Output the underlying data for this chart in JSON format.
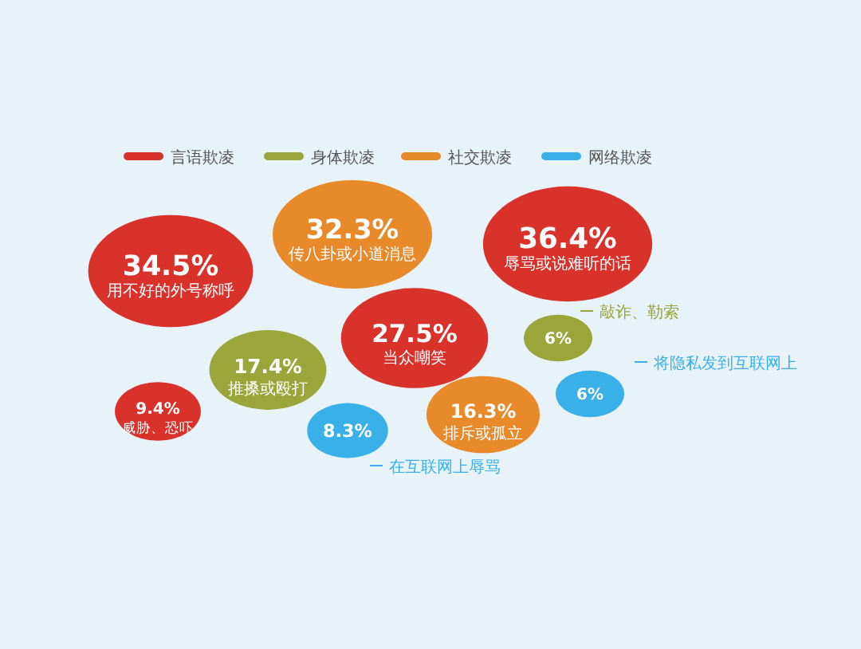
{
  "chart_data": {
    "type": "other",
    "legend": "top",
    "data_labels": true,
    "categories": [
      "用不好的外号称呼",
      "辱骂或说难听的话",
      "当众嘲笑",
      "威胁、恐吓",
      "推搡或殴打",
      "敲诈、勒索",
      "传八卦或小道消息",
      "排斥或孤立",
      "在互联网上辱骂",
      "将隐私发到互联网上"
    ],
    "series": [
      {
        "name": "言语欺凌",
        "color": "#d9322a",
        "values": [
          34.5,
          36.4,
          27.5,
          9.4,
          null,
          null,
          null,
          null,
          null,
          null
        ],
        "value_labels": [
          "34.5%",
          "36.4%",
          "27.5%",
          "9.4%",
          null,
          null,
          null,
          null,
          null,
          null
        ]
      },
      {
        "name": "身体欺凌",
        "color": "#9aa53a",
        "values": [
          null,
          null,
          null,
          null,
          17.4,
          6,
          null,
          null,
          null,
          null
        ],
        "value_labels": [
          null,
          null,
          null,
          null,
          "17.4%",
          "6%",
          null,
          null,
          null,
          null
        ]
      },
      {
        "name": "社交欺凌",
        "color": "#e88a2a",
        "values": [
          null,
          null,
          null,
          null,
          null,
          null,
          32.3,
          16.3,
          null,
          null
        ],
        "value_labels": [
          null,
          null,
          null,
          null,
          null,
          null,
          "32.3%",
          "16.3%",
          null,
          null
        ]
      },
      {
        "name": "网络欺凌",
        "color": "#3ab0e8",
        "values": [
          null,
          null,
          null,
          null,
          null,
          null,
          null,
          null,
          8.3,
          6
        ],
        "value_labels": [
          null,
          null,
          null,
          null,
          null,
          null,
          null,
          null,
          "8.3%",
          "6%"
        ]
      }
    ]
  }
}
